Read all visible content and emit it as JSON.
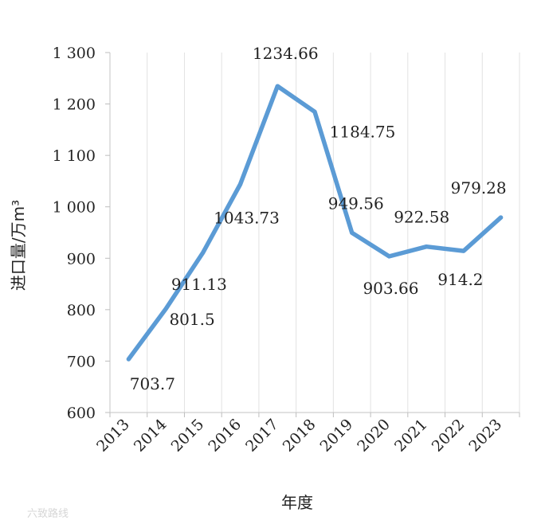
{
  "chart_data": {
    "type": "line",
    "categories": [
      "2013",
      "2014",
      "2015",
      "2016",
      "2017",
      "2018",
      "2019",
      "2020",
      "2021",
      "2022",
      "2023"
    ],
    "values": [
      703.7,
      801.5,
      911.13,
      1043.73,
      1234.66,
      1184.75,
      949.56,
      903.66,
      922.58,
      914.2,
      979.28
    ],
    "data_labels": [
      "703.7",
      "801.5",
      "911.13",
      "1043.73",
      "1234.66",
      "1184.75",
      "949.56",
      "903.66",
      "922.58",
      "914.2",
      "979.28"
    ],
    "ylim": [
      600,
      1300
    ],
    "y_ticks": [
      600,
      700,
      800,
      900,
      1000,
      1100,
      1200,
      1300
    ],
    "y_tick_labels": [
      "600",
      "700",
      "800",
      "900",
      "1 000",
      "1 100",
      "1 200",
      "1 300"
    ],
    "xlabel": "年度",
    "ylabel": "进口量/万m³",
    "grid": "vertical",
    "line_color": "#5b9bd5"
  },
  "watermark": "六致路线"
}
